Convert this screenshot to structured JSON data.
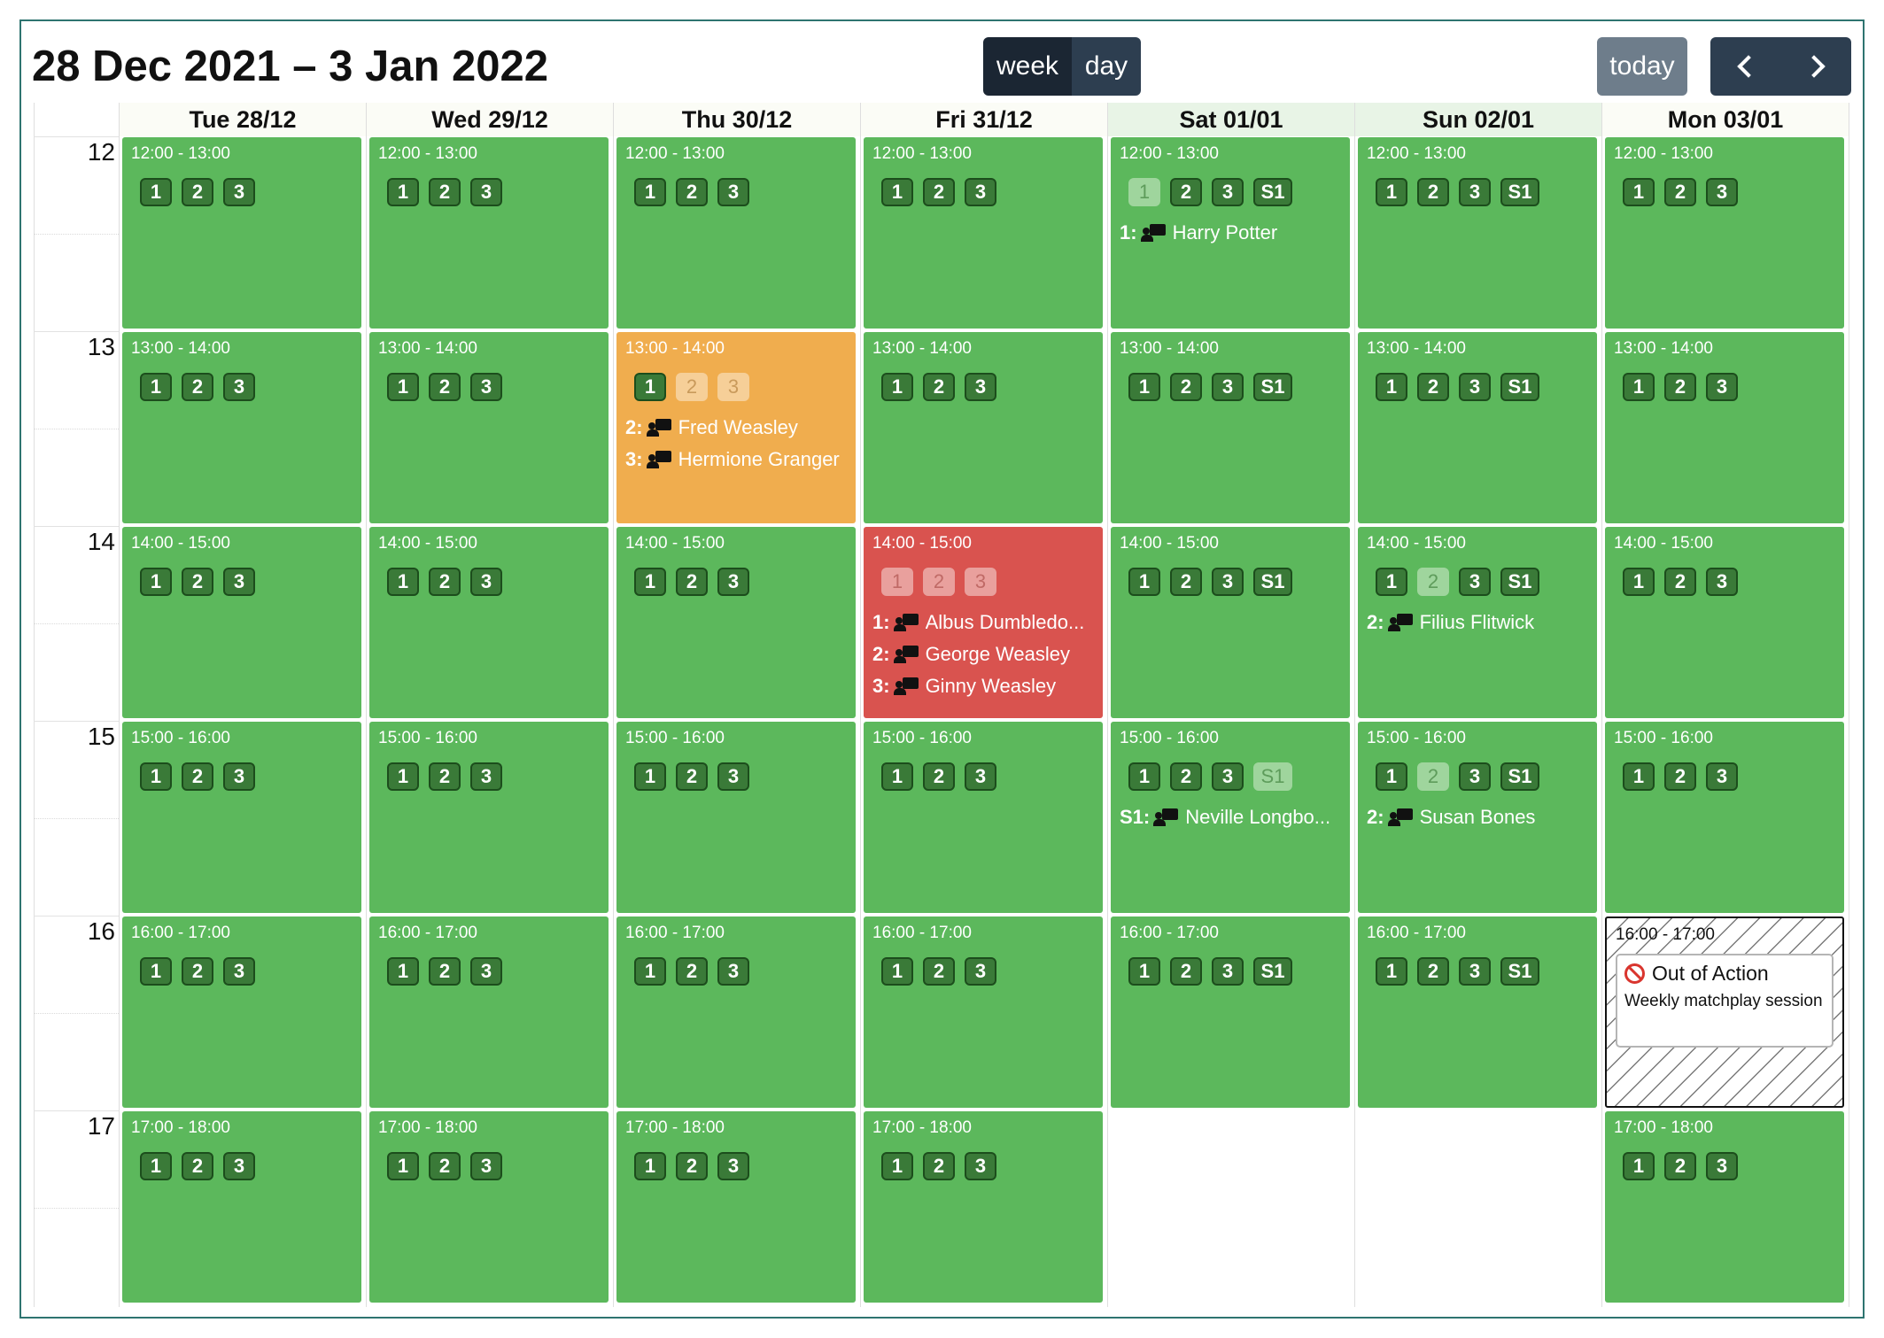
{
  "header": {
    "title": "28 Dec 2021 – 3 Jan 2022",
    "view_week": "week",
    "view_day": "day",
    "today": "today"
  },
  "hours": [
    "12",
    "13",
    "14",
    "15",
    "16",
    "17"
  ],
  "days": [
    {
      "label": "Tue 28/12",
      "weekend": false
    },
    {
      "label": "Wed 29/12",
      "weekend": false
    },
    {
      "label": "Thu 30/12",
      "weekend": false
    },
    {
      "label": "Fri 31/12",
      "weekend": false
    },
    {
      "label": "Sat 01/01",
      "weekend": true
    },
    {
      "label": "Sun 02/01",
      "weekend": true
    },
    {
      "label": "Mon 03/01",
      "weekend": false
    }
  ],
  "colors": {
    "open": "#5cb85c",
    "partial": "#f0ad4e",
    "full": "#d9534f"
  },
  "events": [
    {
      "day": 0,
      "hour": 0,
      "time": "12:00 - 13:00",
      "status": "open",
      "courts": [
        {
          "label": "1"
        },
        {
          "label": "2"
        },
        {
          "label": "3"
        }
      ],
      "bookings": []
    },
    {
      "day": 0,
      "hour": 1,
      "time": "13:00 - 14:00",
      "status": "open",
      "courts": [
        {
          "label": "1"
        },
        {
          "label": "2"
        },
        {
          "label": "3"
        }
      ],
      "bookings": []
    },
    {
      "day": 0,
      "hour": 2,
      "time": "14:00 - 15:00",
      "status": "open",
      "courts": [
        {
          "label": "1"
        },
        {
          "label": "2"
        },
        {
          "label": "3"
        }
      ],
      "bookings": []
    },
    {
      "day": 0,
      "hour": 3,
      "time": "15:00 - 16:00",
      "status": "open",
      "courts": [
        {
          "label": "1"
        },
        {
          "label": "2"
        },
        {
          "label": "3"
        }
      ],
      "bookings": []
    },
    {
      "day": 0,
      "hour": 4,
      "time": "16:00 - 17:00",
      "status": "open",
      "courts": [
        {
          "label": "1"
        },
        {
          "label": "2"
        },
        {
          "label": "3"
        }
      ],
      "bookings": []
    },
    {
      "day": 0,
      "hour": 5,
      "time": "17:00 - 18:00",
      "status": "open",
      "courts": [
        {
          "label": "1"
        },
        {
          "label": "2"
        },
        {
          "label": "3"
        }
      ],
      "bookings": []
    },
    {
      "day": 1,
      "hour": 0,
      "time": "12:00 - 13:00",
      "status": "open",
      "courts": [
        {
          "label": "1"
        },
        {
          "label": "2"
        },
        {
          "label": "3"
        }
      ],
      "bookings": []
    },
    {
      "day": 1,
      "hour": 1,
      "time": "13:00 - 14:00",
      "status": "open",
      "courts": [
        {
          "label": "1"
        },
        {
          "label": "2"
        },
        {
          "label": "3"
        }
      ],
      "bookings": []
    },
    {
      "day": 1,
      "hour": 2,
      "time": "14:00 - 15:00",
      "status": "open",
      "courts": [
        {
          "label": "1"
        },
        {
          "label": "2"
        },
        {
          "label": "3"
        }
      ],
      "bookings": []
    },
    {
      "day": 1,
      "hour": 3,
      "time": "15:00 - 16:00",
      "status": "open",
      "courts": [
        {
          "label": "1"
        },
        {
          "label": "2"
        },
        {
          "label": "3"
        }
      ],
      "bookings": []
    },
    {
      "day": 1,
      "hour": 4,
      "time": "16:00 - 17:00",
      "status": "open",
      "courts": [
        {
          "label": "1"
        },
        {
          "label": "2"
        },
        {
          "label": "3"
        }
      ],
      "bookings": []
    },
    {
      "day": 1,
      "hour": 5,
      "time": "17:00 - 18:00",
      "status": "open",
      "courts": [
        {
          "label": "1"
        },
        {
          "label": "2"
        },
        {
          "label": "3"
        }
      ],
      "bookings": []
    },
    {
      "day": 2,
      "hour": 0,
      "time": "12:00 - 13:00",
      "status": "open",
      "courts": [
        {
          "label": "1"
        },
        {
          "label": "2"
        },
        {
          "label": "3"
        }
      ],
      "bookings": []
    },
    {
      "day": 2,
      "hour": 1,
      "time": "13:00 - 14:00",
      "status": "partial",
      "courts": [
        {
          "label": "1"
        },
        {
          "label": "2",
          "booked": true
        },
        {
          "label": "3",
          "booked": true
        }
      ],
      "bookings": [
        {
          "slot": "2:",
          "name": "Fred Weasley"
        },
        {
          "slot": "3:",
          "name": "Hermione Granger"
        }
      ]
    },
    {
      "day": 2,
      "hour": 2,
      "time": "14:00 - 15:00",
      "status": "open",
      "courts": [
        {
          "label": "1"
        },
        {
          "label": "2"
        },
        {
          "label": "3"
        }
      ],
      "bookings": []
    },
    {
      "day": 2,
      "hour": 3,
      "time": "15:00 - 16:00",
      "status": "open",
      "courts": [
        {
          "label": "1"
        },
        {
          "label": "2"
        },
        {
          "label": "3"
        }
      ],
      "bookings": []
    },
    {
      "day": 2,
      "hour": 4,
      "time": "16:00 - 17:00",
      "status": "open",
      "courts": [
        {
          "label": "1"
        },
        {
          "label": "2"
        },
        {
          "label": "3"
        }
      ],
      "bookings": []
    },
    {
      "day": 2,
      "hour": 5,
      "time": "17:00 - 18:00",
      "status": "open",
      "courts": [
        {
          "label": "1"
        },
        {
          "label": "2"
        },
        {
          "label": "3"
        }
      ],
      "bookings": []
    },
    {
      "day": 3,
      "hour": 0,
      "time": "12:00 - 13:00",
      "status": "open",
      "courts": [
        {
          "label": "1"
        },
        {
          "label": "2"
        },
        {
          "label": "3"
        }
      ],
      "bookings": []
    },
    {
      "day": 3,
      "hour": 1,
      "time": "13:00 - 14:00",
      "status": "open",
      "courts": [
        {
          "label": "1"
        },
        {
          "label": "2"
        },
        {
          "label": "3"
        }
      ],
      "bookings": []
    },
    {
      "day": 3,
      "hour": 2,
      "time": "14:00 - 15:00",
      "status": "full",
      "courts": [
        {
          "label": "1",
          "booked": true
        },
        {
          "label": "2",
          "booked": true
        },
        {
          "label": "3",
          "booked": true
        }
      ],
      "bookings": [
        {
          "slot": "1:",
          "name": "Albus Dumbledo..."
        },
        {
          "slot": "2:",
          "name": "George Weasley"
        },
        {
          "slot": "3:",
          "name": "Ginny Weasley"
        }
      ]
    },
    {
      "day": 3,
      "hour": 3,
      "time": "15:00 - 16:00",
      "status": "open",
      "courts": [
        {
          "label": "1"
        },
        {
          "label": "2"
        },
        {
          "label": "3"
        }
      ],
      "bookings": []
    },
    {
      "day": 3,
      "hour": 4,
      "time": "16:00 - 17:00",
      "status": "open",
      "courts": [
        {
          "label": "1"
        },
        {
          "label": "2"
        },
        {
          "label": "3"
        }
      ],
      "bookings": []
    },
    {
      "day": 3,
      "hour": 5,
      "time": "17:00 - 18:00",
      "status": "open",
      "courts": [
        {
          "label": "1"
        },
        {
          "label": "2"
        },
        {
          "label": "3"
        }
      ],
      "bookings": []
    },
    {
      "day": 4,
      "hour": 0,
      "time": "12:00 - 13:00",
      "status": "open",
      "courts": [
        {
          "label": "1",
          "booked": true
        },
        {
          "label": "2"
        },
        {
          "label": "3"
        },
        {
          "label": "S1"
        }
      ],
      "bookings": [
        {
          "slot": "1:",
          "name": "Harry Potter"
        }
      ]
    },
    {
      "day": 4,
      "hour": 1,
      "time": "13:00 - 14:00",
      "status": "open",
      "courts": [
        {
          "label": "1"
        },
        {
          "label": "2"
        },
        {
          "label": "3"
        },
        {
          "label": "S1"
        }
      ],
      "bookings": []
    },
    {
      "day": 4,
      "hour": 2,
      "time": "14:00 - 15:00",
      "status": "open",
      "courts": [
        {
          "label": "1"
        },
        {
          "label": "2"
        },
        {
          "label": "3"
        },
        {
          "label": "S1"
        }
      ],
      "bookings": []
    },
    {
      "day": 4,
      "hour": 3,
      "time": "15:00 - 16:00",
      "status": "open",
      "courts": [
        {
          "label": "1"
        },
        {
          "label": "2"
        },
        {
          "label": "3"
        },
        {
          "label": "S1",
          "booked": true
        }
      ],
      "bookings": [
        {
          "slot": "S1:",
          "name": "Neville Longbo..."
        }
      ]
    },
    {
      "day": 4,
      "hour": 4,
      "time": "16:00 - 17:00",
      "status": "open",
      "courts": [
        {
          "label": "1"
        },
        {
          "label": "2"
        },
        {
          "label": "3"
        },
        {
          "label": "S1"
        }
      ],
      "bookings": []
    },
    {
      "day": 5,
      "hour": 0,
      "time": "12:00 - 13:00",
      "status": "open",
      "courts": [
        {
          "label": "1"
        },
        {
          "label": "2"
        },
        {
          "label": "3"
        },
        {
          "label": "S1"
        }
      ],
      "bookings": []
    },
    {
      "day": 5,
      "hour": 1,
      "time": "13:00 - 14:00",
      "status": "open",
      "courts": [
        {
          "label": "1"
        },
        {
          "label": "2"
        },
        {
          "label": "3"
        },
        {
          "label": "S1"
        }
      ],
      "bookings": []
    },
    {
      "day": 5,
      "hour": 2,
      "time": "14:00 - 15:00",
      "status": "open",
      "courts": [
        {
          "label": "1"
        },
        {
          "label": "2",
          "booked": true
        },
        {
          "label": "3"
        },
        {
          "label": "S1"
        }
      ],
      "bookings": [
        {
          "slot": "2:",
          "name": "Filius Flitwick"
        }
      ]
    },
    {
      "day": 5,
      "hour": 3,
      "time": "15:00 - 16:00",
      "status": "open",
      "courts": [
        {
          "label": "1"
        },
        {
          "label": "2",
          "booked": true
        },
        {
          "label": "3"
        },
        {
          "label": "S1"
        }
      ],
      "bookings": [
        {
          "slot": "2:",
          "name": "Susan Bones"
        }
      ]
    },
    {
      "day": 5,
      "hour": 4,
      "time": "16:00 - 17:00",
      "status": "open",
      "courts": [
        {
          "label": "1"
        },
        {
          "label": "2"
        },
        {
          "label": "3"
        },
        {
          "label": "S1"
        }
      ],
      "bookings": []
    },
    {
      "day": 6,
      "hour": 0,
      "time": "12:00 - 13:00",
      "status": "open",
      "courts": [
        {
          "label": "1"
        },
        {
          "label": "2"
        },
        {
          "label": "3"
        }
      ],
      "bookings": []
    },
    {
      "day": 6,
      "hour": 1,
      "time": "13:00 - 14:00",
      "status": "open",
      "courts": [
        {
          "label": "1"
        },
        {
          "label": "2"
        },
        {
          "label": "3"
        }
      ],
      "bookings": []
    },
    {
      "day": 6,
      "hour": 2,
      "time": "14:00 - 15:00",
      "status": "open",
      "courts": [
        {
          "label": "1"
        },
        {
          "label": "2"
        },
        {
          "label": "3"
        }
      ],
      "bookings": []
    },
    {
      "day": 6,
      "hour": 3,
      "time": "15:00 - 16:00",
      "status": "open",
      "courts": [
        {
          "label": "1"
        },
        {
          "label": "2"
        },
        {
          "label": "3"
        }
      ],
      "bookings": []
    },
    {
      "day": 6,
      "hour": 4,
      "time": "16:00 - 17:00",
      "status": "out",
      "note": {
        "icon": "ban-icon",
        "title": "Out of Action",
        "description": "Weekly matchplay session"
      }
    },
    {
      "day": 6,
      "hour": 5,
      "time": "17:00 - 18:00",
      "status": "open",
      "courts": [
        {
          "label": "1"
        },
        {
          "label": "2"
        },
        {
          "label": "3"
        }
      ],
      "bookings": []
    }
  ]
}
